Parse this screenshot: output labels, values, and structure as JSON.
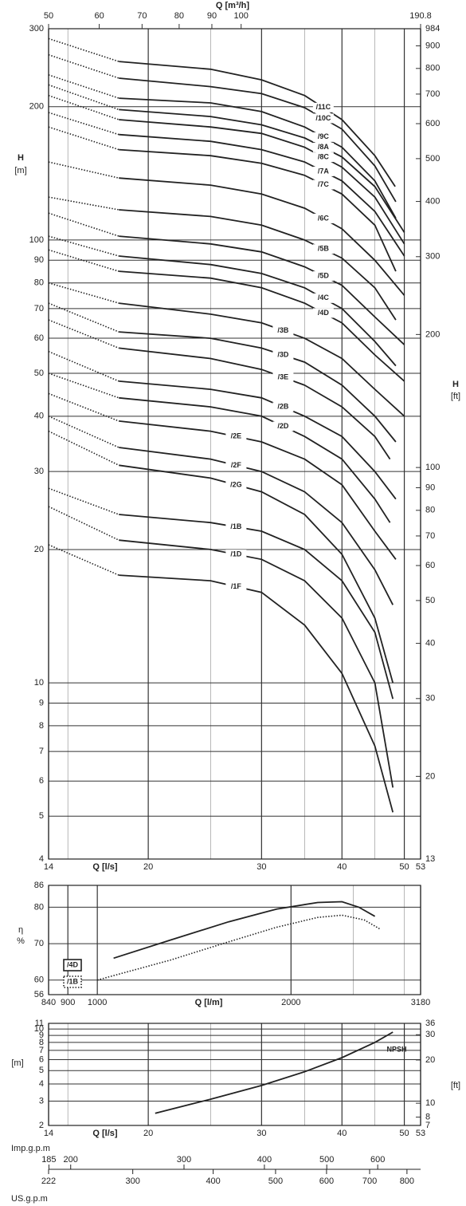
{
  "chart_data": [
    {
      "type": "line",
      "x_label": "Q [l/s]",
      "y_label": "H",
      "y_unit": "[m]",
      "y2_label": "H",
      "y2_unit": "[ft]",
      "log_x": true,
      "log_y": true,
      "color": "#222222",
      "first_segment": "dotted",
      "xlim": [
        14,
        53
      ],
      "xticks": [
        14,
        20,
        30,
        40,
        50,
        53
      ],
      "x_minor_grid": [
        15,
        25,
        35,
        45
      ],
      "ylim": [
        4,
        300
      ],
      "yticks": [
        4,
        5,
        6,
        7,
        8,
        9,
        10,
        20,
        30,
        40,
        50,
        60,
        70,
        80,
        90,
        100,
        200,
        300
      ],
      "y2lim": [
        13,
        984
      ],
      "y2ticks": [
        13,
        20,
        30,
        40,
        50,
        60,
        70,
        80,
        90,
        100,
        200,
        300,
        400,
        500,
        600,
        700,
        800,
        900,
        984
      ],
      "top_axis": {
        "label": "Q [m³/h]",
        "lim": [
          50,
          190.8
        ],
        "ticks": [
          50,
          60,
          70,
          80,
          90,
          100,
          190.8
        ]
      },
      "series": [
        {
          "name": "/11C",
          "x": [
            14,
            18,
            25,
            30,
            35,
            40,
            45,
            48.4
          ],
          "values": [
            285,
            253,
            243,
            230,
            212,
            187,
            155,
            132
          ]
        },
        {
          "name": "/10C",
          "x": [
            14,
            18,
            25,
            30,
            35,
            40,
            45,
            48.5
          ],
          "values": [
            262,
            232,
            222,
            214,
            199,
            178,
            147,
            122
          ]
        },
        {
          "name": "/9C",
          "x": [
            14,
            18,
            25,
            30,
            35,
            40,
            45,
            48.5
          ],
          "values": [
            236,
            209,
            204,
            195,
            180,
            162,
            136,
            112
          ]
        },
        {
          "name": "/8A",
          "x": [
            14,
            18,
            25,
            30,
            35,
            40,
            45,
            50
          ],
          "values": [
            224,
            197,
            190,
            182,
            170,
            154,
            132,
            104
          ]
        },
        {
          "name": "/8C",
          "x": [
            14,
            18,
            25,
            30,
            35,
            40,
            45,
            50
          ],
          "values": [
            212,
            187,
            180,
            174,
            162,
            146,
            125,
            98
          ]
        },
        {
          "name": "/7A",
          "x": [
            14,
            18,
            25,
            30,
            35,
            40,
            45,
            50
          ],
          "values": [
            194,
            173,
            167,
            160,
            150,
            136,
            116,
            92
          ]
        },
        {
          "name": "/7C",
          "x": [
            14,
            18,
            25,
            30,
            35,
            40,
            45,
            48.5
          ],
          "values": [
            180,
            160,
            155,
            149,
            140,
            127,
            108,
            85
          ]
        },
        {
          "name": "/6C",
          "x": [
            14,
            18,
            25,
            30,
            35,
            40,
            45,
            50
          ],
          "values": [
            150,
            138,
            133,
            127,
            118,
            106,
            90,
            75
          ]
        },
        {
          "name": "/5B",
          "x": [
            14,
            18,
            25,
            30,
            35,
            40,
            45,
            48.5
          ],
          "values": [
            125,
            117,
            113,
            108,
            100,
            91,
            78,
            66
          ]
        },
        {
          "name": "/5D",
          "x": [
            14,
            18,
            25,
            30,
            35,
            40,
            45,
            50
          ],
          "values": [
            115,
            102,
            98,
            94,
            87,
            79,
            67,
            58
          ]
        },
        {
          "name": "/4C",
          "x": [
            14,
            18,
            25,
            30,
            35,
            40,
            45,
            48.5
          ],
          "values": [
            102,
            92,
            88,
            84,
            78,
            70,
            59,
            52
          ]
        },
        {
          "name": "/4D",
          "x": [
            14,
            18,
            25,
            30,
            35,
            40,
            45,
            50
          ],
          "values": [
            95,
            85,
            82,
            78,
            72,
            65,
            55,
            48
          ]
        },
        {
          "name": "/3B",
          "x": [
            14,
            18,
            25,
            30,
            35,
            40,
            45,
            50
          ],
          "values": [
            80,
            72,
            68,
            65,
            60,
            54,
            46,
            40
          ]
        },
        {
          "name": "/3D",
          "x": [
            14,
            18,
            25,
            30,
            35,
            40,
            45,
            48.5
          ],
          "values": [
            72,
            62,
            60,
            57,
            53,
            47,
            40,
            35
          ]
        },
        {
          "name": "/3E",
          "x": [
            14,
            18,
            25,
            30,
            35,
            40,
            45,
            47.5
          ],
          "values": [
            66,
            57,
            54,
            51,
            47,
            42,
            36,
            32
          ]
        },
        {
          "name": "/2B",
          "x": [
            14,
            18,
            25,
            30,
            35,
            40,
            45,
            48.5
          ],
          "values": [
            56,
            48,
            46,
            44,
            40,
            36,
            30,
            26
          ]
        },
        {
          "name": "/2D",
          "x": [
            14,
            18,
            25,
            30,
            35,
            40,
            45,
            47.5
          ],
          "values": [
            50,
            44,
            42,
            40,
            36,
            32,
            26,
            23
          ]
        },
        {
          "name": "/2E",
          "x": [
            14,
            18,
            25,
            30,
            35,
            40,
            45,
            48.5
          ],
          "values": [
            45,
            39,
            37,
            35,
            32,
            28,
            22,
            19
          ]
        },
        {
          "name": "/2F",
          "x": [
            14,
            18,
            25,
            30,
            35,
            40,
            45,
            48
          ],
          "values": [
            40,
            34,
            32,
            30,
            27,
            23,
            18,
            15
          ]
        },
        {
          "name": "/2G",
          "x": [
            14,
            18,
            25,
            30,
            35,
            40,
            45,
            48
          ],
          "values": [
            37,
            31,
            29,
            27,
            24,
            19.5,
            14,
            10
          ]
        },
        {
          "name": "/1B",
          "x": [
            14,
            18,
            25,
            30,
            35,
            40,
            45,
            48
          ],
          "values": [
            27.5,
            24,
            23,
            22,
            20,
            17,
            13,
            9.2
          ]
        },
        {
          "name": "/1D",
          "x": [
            14,
            18,
            25,
            30,
            35,
            40,
            45,
            48
          ],
          "values": [
            25,
            21,
            20,
            19,
            17,
            14,
            10,
            5.8
          ]
        },
        {
          "name": "/1F",
          "x": [
            14,
            18,
            25,
            30,
            35,
            40,
            45,
            48
          ],
          "values": [
            20.5,
            17.5,
            17,
            16,
            13.5,
            10.5,
            7.2,
            5.1
          ]
        }
      ]
    },
    {
      "type": "line",
      "x_label": "Q [l/m]",
      "y_label": "η",
      "y_unit": "%",
      "log_x": true,
      "xlim": [
        840,
        3180
      ],
      "xticks": [
        840,
        900,
        1000,
        2000,
        3180
      ],
      "x_minor_grid": [
        2500,
        3000
      ],
      "ylim": [
        56,
        86
      ],
      "yticks": [
        56,
        60,
        70,
        80,
        86
      ],
      "color": "#222222",
      "series": [
        {
          "name": "/4D",
          "line_style": "solid",
          "x": [
            1060,
            1300,
            1600,
            1900,
            2200,
            2400,
            2550,
            2700
          ],
          "values": [
            66,
            71,
            76,
            79.5,
            81.3,
            81.5,
            80,
            77.5
          ]
        },
        {
          "name": "/1B",
          "line_style": "dotted",
          "x": [
            1000,
            1300,
            1600,
            1900,
            2200,
            2400,
            2600,
            2750
          ],
          "values": [
            60,
            65.5,
            70.5,
            74.5,
            77.2,
            77.8,
            76.5,
            74
          ]
        }
      ]
    },
    {
      "type": "line",
      "x_label": "Q [l/s]",
      "y_unit": "[m]",
      "y2_unit": "[ft]",
      "log_x": true,
      "log_y": true,
      "xlim": [
        14,
        53
      ],
      "xticks": [
        14,
        20,
        30,
        40,
        50,
        53
      ],
      "x_minor_grid": [
        15,
        25,
        35,
        45
      ],
      "ylim": [
        2,
        11
      ],
      "yticks": [
        2,
        3,
        4,
        5,
        6,
        7,
        8,
        9,
        10,
        11
      ],
      "y2lim": [
        7,
        36
      ],
      "y2ticks": [
        7,
        8,
        10,
        20,
        30,
        36
      ],
      "color": "#222222",
      "series": [
        {
          "name": "NPSH",
          "x": [
            20.5,
            25,
            30,
            35,
            40,
            45,
            48
          ],
          "values": [
            2.45,
            3.1,
            3.9,
            4.9,
            6.2,
            8,
            9.5
          ]
        }
      ]
    },
    {
      "type": "scale",
      "scales": [
        {
          "label": "Imp.g.p.m",
          "lim": [
            184.8,
            699.5
          ],
          "ticks": [
            185,
            200,
            300,
            400,
            500,
            600
          ]
        },
        {
          "label": "US.g.p.m",
          "lim": [
            222,
            840
          ],
          "ticks": [
            222,
            300,
            400,
            500,
            600,
            700,
            800
          ]
        }
      ]
    }
  ]
}
